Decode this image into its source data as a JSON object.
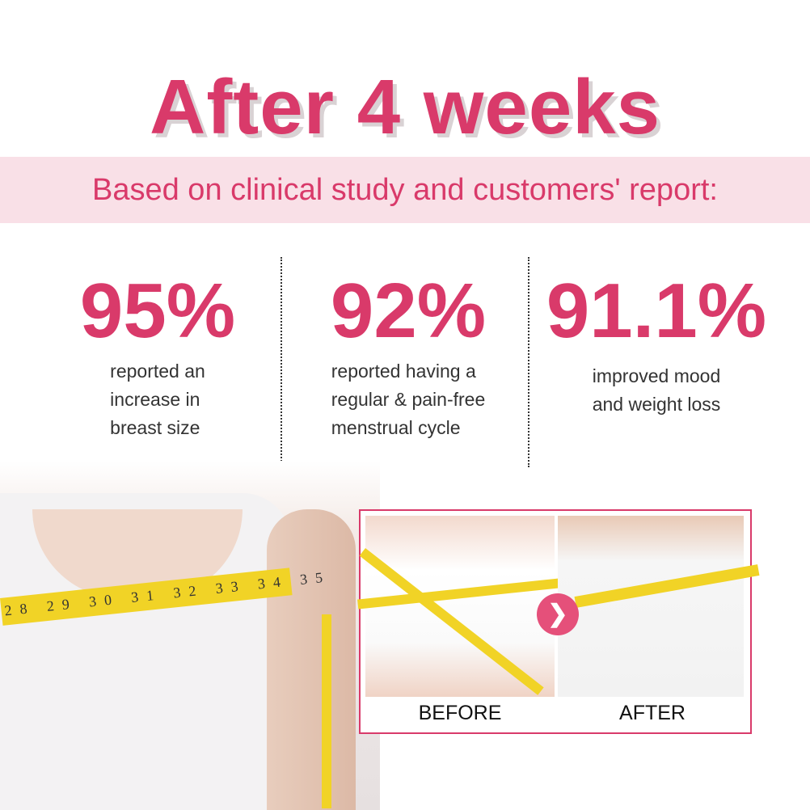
{
  "header": {
    "title": "After 4 weeks",
    "subtitle": "Based on clinical study and customers' report:"
  },
  "stats": [
    {
      "value": "95%",
      "description": "reported an\nincrease in\nbreast size"
    },
    {
      "value": "92%",
      "description": "reported having a\nregular & pain-free\nmenstrual cycle"
    },
    {
      "value": "91.1%",
      "description": "improved mood\nand weight loss"
    }
  ],
  "photo": {
    "tape_numbers": "28 29 30 31 32 33 34 35"
  },
  "comparison": {
    "before_label": "BEFORE",
    "after_label": "AFTER",
    "arrow_icon": "chevron-right-icon"
  },
  "colors": {
    "accent": "#d93a6a",
    "band": "#f9e0e7",
    "tape": "#f1d326"
  }
}
